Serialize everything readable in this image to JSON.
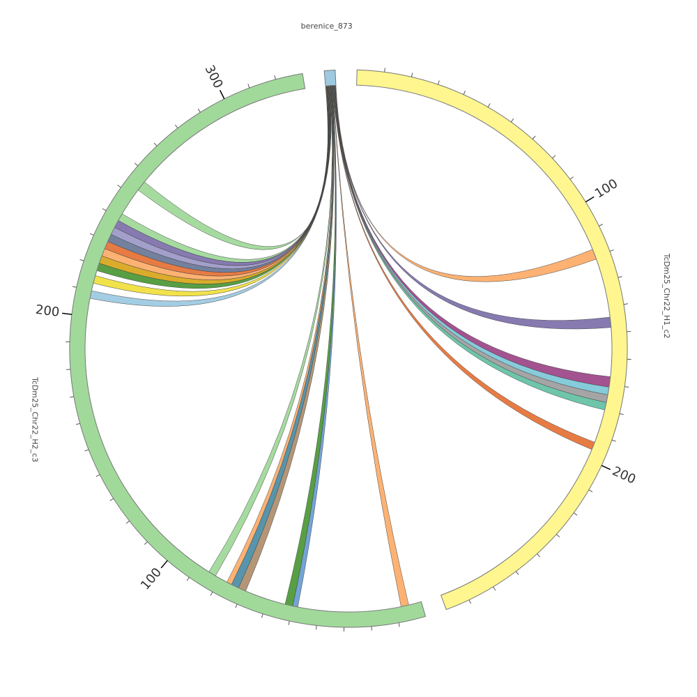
{
  "chart_data": {
    "type": "chord",
    "tick_step": 10,
    "segments": [
      {
        "name": "berenice_873",
        "length": 4,
        "color": "#9ecae1"
      },
      {
        "name": "TcDm25_Chr22_H1_c2",
        "length": 279,
        "color": "#fff68f",
        "ticks": [
          100,
          200
        ]
      },
      {
        "name": "TcDm25_Chr22_H2_c3",
        "length": 330,
        "color": "#a1d99b",
        "ticks": [
          100,
          200,
          300
        ]
      }
    ],
    "links": [
      {
        "target": 2,
        "start": 253,
        "end": 257,
        "color": "#a1d99b"
      },
      {
        "target": 2,
        "start": 239,
        "end": 242,
        "color": "#a1d99b"
      },
      {
        "target": 2,
        "start": 236,
        "end": 239,
        "color": "#8073ac"
      },
      {
        "target": 2,
        "start": 233,
        "end": 236,
        "color": "#9e9ac8"
      },
      {
        "target": 2,
        "start": 230,
        "end": 233,
        "color": "#6b7a99"
      },
      {
        "target": 2,
        "start": 227,
        "end": 230,
        "color": "#e6743a"
      },
      {
        "target": 2,
        "start": 224,
        "end": 227,
        "color": "#fdae6b"
      },
      {
        "target": 2,
        "start": 221,
        "end": 224,
        "color": "#d9a820"
      },
      {
        "target": 2,
        "start": 218,
        "end": 221,
        "color": "#4f9a3a"
      },
      {
        "target": 2,
        "start": 213,
        "end": 216,
        "color": "#f0e040"
      },
      {
        "target": 2,
        "start": 207,
        "end": 210,
        "color": "#9ecae1"
      },
      {
        "target": 2,
        "start": 82,
        "end": 85,
        "color": "#a1d99b"
      },
      {
        "target": 2,
        "start": 75,
        "end": 77,
        "color": "#fdae6b"
      },
      {
        "target": 2,
        "start": 72,
        "end": 75,
        "color": "#4e8fa8"
      },
      {
        "target": 2,
        "start": 69,
        "end": 72,
        "color": "#b09070"
      },
      {
        "target": 2,
        "start": 50,
        "end": 53,
        "color": "#4f9a3a"
      },
      {
        "target": 2,
        "start": 48,
        "end": 50,
        "color": "#6b9fd4"
      },
      {
        "target": 2,
        "start": 5,
        "end": 8,
        "color": "#fdae6b"
      },
      {
        "target": 1,
        "start": 193,
        "end": 196,
        "color": "#e6743a"
      },
      {
        "target": 1,
        "start": 177,
        "end": 180,
        "color": "#66c2a5"
      },
      {
        "target": 1,
        "start": 174,
        "end": 177,
        "color": "#a0a0a0"
      },
      {
        "target": 1,
        "start": 171,
        "end": 174,
        "color": "#7fc8d8"
      },
      {
        "target": 1,
        "start": 167,
        "end": 171,
        "color": "#9e4a8a"
      },
      {
        "target": 1,
        "start": 144,
        "end": 148,
        "color": "#8073ac"
      },
      {
        "target": 1,
        "start": 117,
        "end": 121,
        "color": "#fdae6b"
      }
    ]
  }
}
